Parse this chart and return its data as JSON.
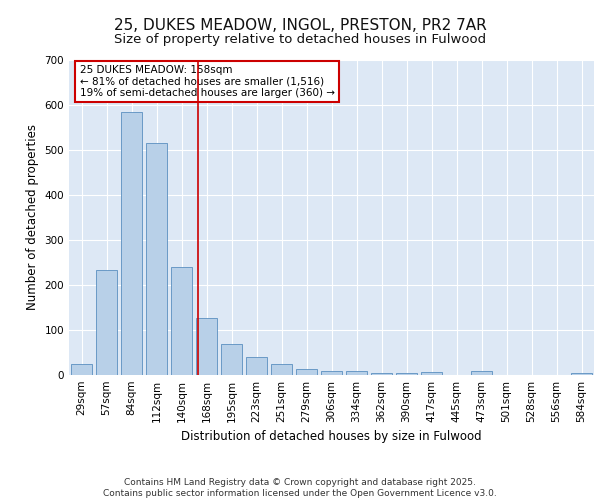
{
  "title_line1": "25, DUKES MEADOW, INGOL, PRESTON, PR2 7AR",
  "title_line2": "Size of property relative to detached houses in Fulwood",
  "xlabel": "Distribution of detached houses by size in Fulwood",
  "ylabel": "Number of detached properties",
  "categories": [
    "29sqm",
    "57sqm",
    "84sqm",
    "112sqm",
    "140sqm",
    "168sqm",
    "195sqm",
    "223sqm",
    "251sqm",
    "279sqm",
    "306sqm",
    "334sqm",
    "362sqm",
    "390sqm",
    "417sqm",
    "445sqm",
    "473sqm",
    "501sqm",
    "528sqm",
    "556sqm",
    "584sqm"
  ],
  "values": [
    25,
    233,
    585,
    515,
    240,
    127,
    70,
    40,
    25,
    14,
    9,
    10,
    5,
    5,
    7,
    0,
    8,
    0,
    0,
    0,
    5
  ],
  "bar_color": "#b8d0e8",
  "bar_edge_color": "#5a8fc0",
  "background_color": "#dde8f5",
  "grid_color": "#ffffff",
  "annotation_box_text": "25 DUKES MEADOW: 158sqm\n← 81% of detached houses are smaller (1,516)\n19% of semi-detached houses are larger (360) →",
  "vline_color": "#cc0000",
  "vline_position": 4.65,
  "annotation_box_color": "#ffffff",
  "annotation_box_edge_color": "#cc0000",
  "footer_text": "Contains HM Land Registry data © Crown copyright and database right 2025.\nContains public sector information licensed under the Open Government Licence v3.0.",
  "ylim": [
    0,
    700
  ],
  "yticks": [
    0,
    100,
    200,
    300,
    400,
    500,
    600,
    700
  ],
  "title_fontsize": 11,
  "subtitle_fontsize": 9.5,
  "axis_label_fontsize": 8.5,
  "tick_fontsize": 7.5,
  "annotation_fontsize": 7.5,
  "footer_fontsize": 6.5
}
